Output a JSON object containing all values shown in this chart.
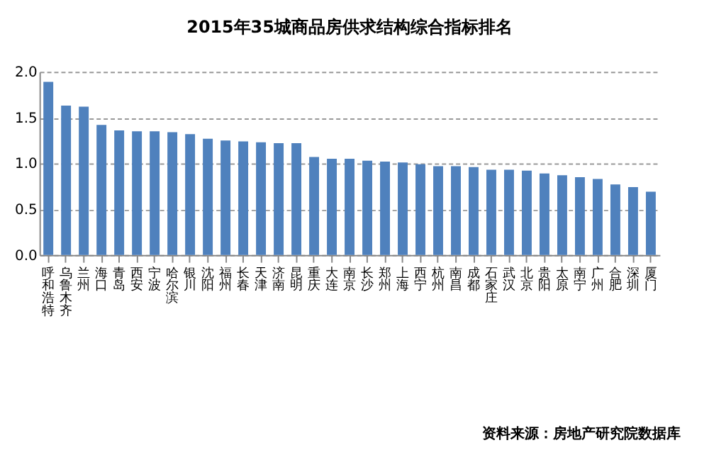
{
  "chart_data": {
    "type": "bar",
    "title": "2015年35城商品房供求结构综合指标排名",
    "categories": [
      "呼和浩特",
      "乌鲁木齐",
      "兰州",
      "海口",
      "青岛",
      "西安",
      "宁波",
      "哈尔滨",
      "银川",
      "沈阳",
      "福州",
      "长春",
      "天津",
      "济南",
      "昆明",
      "重庆",
      "大连",
      "南京",
      "长沙",
      "郑州",
      "上海",
      "西宁",
      "杭州",
      "南昌",
      "成都",
      "石家庄",
      "武汉",
      "北京",
      "贵阳",
      "太原",
      "南宁",
      "广州",
      "合肥",
      "深圳",
      "厦门"
    ],
    "values": [
      1.89,
      1.63,
      1.62,
      1.42,
      1.36,
      1.35,
      1.35,
      1.34,
      1.32,
      1.27,
      1.25,
      1.24,
      1.23,
      1.22,
      1.22,
      1.07,
      1.05,
      1.05,
      1.03,
      1.02,
      1.01,
      0.99,
      0.97,
      0.97,
      0.96,
      0.93,
      0.93,
      0.92,
      0.89,
      0.87,
      0.85,
      0.83,
      0.77,
      0.74,
      0.69
    ],
    "color": "#4f81bd",
    "ylim": [
      0,
      2
    ],
    "yticks": [
      {
        "value": 0,
        "label": "0.0"
      },
      {
        "value": 0.5,
        "label": "0.5"
      },
      {
        "value": 1,
        "label": "1.0"
      },
      {
        "value": 1.5,
        "label": "1.5"
      },
      {
        "value": 2,
        "label": "2.0"
      }
    ],
    "grid": "y",
    "line_style": "dashed",
    "annotations": [
      "资料来源：房地产研究院数据库"
    ]
  }
}
